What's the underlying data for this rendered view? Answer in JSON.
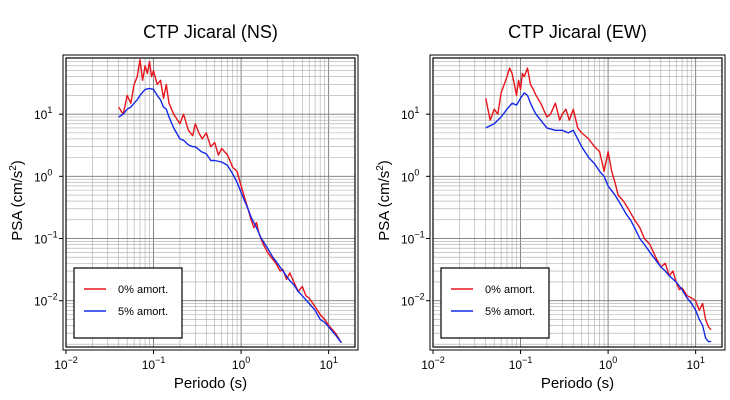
{
  "chart_data": [
    {
      "type": "line",
      "title": "CTP Jicaral (NS)",
      "xlabel": "Periodo (s)",
      "ylabel_main": "PSA (cm/s",
      "ylabel_sup": "2",
      "ylabel_tail": ")",
      "xscale": "log",
      "yscale": "log",
      "xlim": [
        0.01,
        20
      ],
      "ylim": [
        0.0018,
        80
      ],
      "grid": true,
      "legend_position": "bottom-left",
      "x_ticks": [
        {
          "base": "10",
          "exp": "−2"
        },
        {
          "base": "10",
          "exp": "−1"
        },
        {
          "base": "10",
          "exp": "0"
        },
        {
          "base": "10",
          "exp": "1"
        }
      ],
      "y_ticks": [
        {
          "base": "10",
          "exp": "−2"
        },
        {
          "base": "10",
          "exp": "−1"
        },
        {
          "base": "10",
          "exp": "0"
        },
        {
          "base": "10",
          "exp": "1"
        }
      ],
      "series": [
        {
          "name": "0% amort.",
          "color": "#e8141c",
          "points": [
            [
              0.04,
              13
            ],
            [
              0.045,
              10
            ],
            [
              0.05,
              20
            ],
            [
              0.055,
              15
            ],
            [
              0.06,
              30
            ],
            [
              0.065,
              40
            ],
            [
              0.07,
              75
            ],
            [
              0.075,
              35
            ],
            [
              0.08,
              60
            ],
            [
              0.085,
              45
            ],
            [
              0.09,
              70
            ],
            [
              0.095,
              40
            ],
            [
              0.1,
              50
            ],
            [
              0.11,
              30
            ],
            [
              0.12,
              35
            ],
            [
              0.13,
              18
            ],
            [
              0.14,
              30
            ],
            [
              0.15,
              15
            ],
            [
              0.17,
              10
            ],
            [
              0.2,
              7
            ],
            [
              0.22,
              10
            ],
            [
              0.25,
              5.5
            ],
            [
              0.28,
              4.5
            ],
            [
              0.3,
              7
            ],
            [
              0.33,
              5
            ],
            [
              0.36,
              4
            ],
            [
              0.4,
              5
            ],
            [
              0.45,
              3
            ],
            [
              0.5,
              3.5
            ],
            [
              0.55,
              2.2
            ],
            [
              0.6,
              2.8
            ],
            [
              0.7,
              2.2
            ],
            [
              0.8,
              1.4
            ],
            [
              0.9,
              1.2
            ],
            [
              1.0,
              0.7
            ],
            [
              1.1,
              0.45
            ],
            [
              1.2,
              0.3
            ],
            [
              1.3,
              0.2
            ],
            [
              1.4,
              0.15
            ],
            [
              1.5,
              0.18
            ],
            [
              1.6,
              0.12
            ],
            [
              1.8,
              0.08
            ],
            [
              2.0,
              0.06
            ],
            [
              2.2,
              0.05
            ],
            [
              2.5,
              0.04
            ],
            [
              2.8,
              0.03
            ],
            [
              3.0,
              0.032
            ],
            [
              3.3,
              0.022
            ],
            [
              3.6,
              0.028
            ],
            [
              4.0,
              0.02
            ],
            [
              4.5,
              0.014
            ],
            [
              5.0,
              0.017
            ],
            [
              5.5,
              0.012
            ],
            [
              6.0,
              0.011
            ],
            [
              7.0,
              0.008
            ],
            [
              8.0,
              0.006
            ],
            [
              9.0,
              0.005
            ],
            [
              10.0,
              0.004
            ],
            [
              12.0,
              0.003
            ],
            [
              14.0,
              0.0021
            ]
          ]
        },
        {
          "name": "5% amort.",
          "color": "#1428e8",
          "points": [
            [
              0.04,
              9
            ],
            [
              0.045,
              10
            ],
            [
              0.05,
              12
            ],
            [
              0.055,
              13
            ],
            [
              0.06,
              15
            ],
            [
              0.065,
              17
            ],
            [
              0.07,
              20
            ],
            [
              0.08,
              25
            ],
            [
              0.09,
              26
            ],
            [
              0.1,
              25
            ],
            [
              0.11,
              20
            ],
            [
              0.12,
              17
            ],
            [
              0.13,
              13
            ],
            [
              0.14,
              12
            ],
            [
              0.15,
              9
            ],
            [
              0.17,
              6
            ],
            [
              0.2,
              4
            ],
            [
              0.22,
              3.8
            ],
            [
              0.25,
              3.2
            ],
            [
              0.28,
              3
            ],
            [
              0.3,
              3
            ],
            [
              0.35,
              2.5
            ],
            [
              0.4,
              2.3
            ],
            [
              0.45,
              1.8
            ],
            [
              0.5,
              1.8
            ],
            [
              0.6,
              1.7
            ],
            [
              0.7,
              1.5
            ],
            [
              0.8,
              1.1
            ],
            [
              0.9,
              0.8
            ],
            [
              1.0,
              0.55
            ],
            [
              1.1,
              0.4
            ],
            [
              1.2,
              0.3
            ],
            [
              1.3,
              0.22
            ],
            [
              1.5,
              0.15
            ],
            [
              1.7,
              0.1
            ],
            [
              2.0,
              0.07
            ],
            [
              2.3,
              0.05
            ],
            [
              2.6,
              0.04
            ],
            [
              3.0,
              0.03
            ],
            [
              3.5,
              0.022
            ],
            [
              4.0,
              0.018
            ],
            [
              4.5,
              0.014
            ],
            [
              5.0,
              0.012
            ],
            [
              6.0,
              0.009
            ],
            [
              7.0,
              0.007
            ],
            [
              8.0,
              0.005
            ],
            [
              9.0,
              0.0045
            ],
            [
              10.0,
              0.0038
            ],
            [
              12.0,
              0.0028
            ],
            [
              14.0,
              0.0021
            ]
          ]
        }
      ]
    },
    {
      "type": "line",
      "title": "CTP Jicaral (EW)",
      "xlabel": "Periodo (s)",
      "ylabel_main": "PSA (cm/s",
      "ylabel_sup": "2",
      "ylabel_tail": ")",
      "xscale": "log",
      "yscale": "log",
      "xlim": [
        0.01,
        20
      ],
      "ylim": [
        0.0018,
        80
      ],
      "grid": true,
      "legend_position": "bottom-left",
      "x_ticks": [
        {
          "base": "10",
          "exp": "−2"
        },
        {
          "base": "10",
          "exp": "−1"
        },
        {
          "base": "10",
          "exp": "0"
        },
        {
          "base": "10",
          "exp": "1"
        }
      ],
      "y_ticks": [
        {
          "base": "10",
          "exp": "−2"
        },
        {
          "base": "10",
          "exp": "−1"
        },
        {
          "base": "10",
          "exp": "0"
        },
        {
          "base": "10",
          "exp": "1"
        }
      ],
      "series": [
        {
          "name": "0% amort.",
          "color": "#e8141c",
          "points": [
            [
              0.04,
              18
            ],
            [
              0.045,
              8
            ],
            [
              0.05,
              12
            ],
            [
              0.055,
              10
            ],
            [
              0.06,
              22
            ],
            [
              0.065,
              30
            ],
            [
              0.07,
              40
            ],
            [
              0.075,
              55
            ],
            [
              0.08,
              45
            ],
            [
              0.085,
              30
            ],
            [
              0.09,
              20
            ],
            [
              0.095,
              35
            ],
            [
              0.1,
              25
            ],
            [
              0.105,
              45
            ],
            [
              0.11,
              40
            ],
            [
              0.12,
              55
            ],
            [
              0.13,
              30
            ],
            [
              0.14,
              25
            ],
            [
              0.15,
              20
            ],
            [
              0.17,
              15
            ],
            [
              0.2,
              9
            ],
            [
              0.22,
              10
            ],
            [
              0.25,
              15
            ],
            [
              0.28,
              8
            ],
            [
              0.3,
              10
            ],
            [
              0.33,
              12
            ],
            [
              0.36,
              8
            ],
            [
              0.4,
              12
            ],
            [
              0.45,
              6
            ],
            [
              0.5,
              5
            ],
            [
              0.6,
              4
            ],
            [
              0.7,
              3
            ],
            [
              0.8,
              2.5
            ],
            [
              0.9,
              1.2
            ],
            [
              1.0,
              2.5
            ],
            [
              1.1,
              1.2
            ],
            [
              1.2,
              0.8
            ],
            [
              1.3,
              0.5
            ],
            [
              1.5,
              0.4
            ],
            [
              1.7,
              0.3
            ],
            [
              2.0,
              0.2
            ],
            [
              2.3,
              0.15
            ],
            [
              2.6,
              0.1
            ],
            [
              3.0,
              0.08
            ],
            [
              3.5,
              0.05
            ],
            [
              4.0,
              0.035
            ],
            [
              4.5,
              0.04
            ],
            [
              5.0,
              0.025
            ],
            [
              5.5,
              0.03
            ],
            [
              6.0,
              0.02
            ],
            [
              6.5,
              0.015
            ],
            [
              7.0,
              0.016
            ],
            [
              8.0,
              0.012
            ],
            [
              9.0,
              0.011
            ],
            [
              10.0,
              0.01
            ],
            [
              11.0,
              0.007
            ],
            [
              12.0,
              0.009
            ],
            [
              13.0,
              0.005
            ],
            [
              14.0,
              0.0038
            ],
            [
              15.0,
              0.0034
            ]
          ]
        },
        {
          "name": "5% amort.",
          "color": "#1428e8",
          "points": [
            [
              0.04,
              6
            ],
            [
              0.05,
              7
            ],
            [
              0.06,
              9
            ],
            [
              0.07,
              12
            ],
            [
              0.08,
              15
            ],
            [
              0.09,
              14
            ],
            [
              0.1,
              18
            ],
            [
              0.11,
              22
            ],
            [
              0.12,
              20
            ],
            [
              0.13,
              15
            ],
            [
              0.14,
              12
            ],
            [
              0.15,
              10
            ],
            [
              0.17,
              8
            ],
            [
              0.2,
              6
            ],
            [
              0.25,
              5.5
            ],
            [
              0.3,
              5.5
            ],
            [
              0.35,
              5
            ],
            [
              0.4,
              5.5
            ],
            [
              0.45,
              4
            ],
            [
              0.5,
              3
            ],
            [
              0.6,
              2
            ],
            [
              0.7,
              1.6
            ],
            [
              0.8,
              1.2
            ],
            [
              0.9,
              1.0
            ],
            [
              1.0,
              0.7
            ],
            [
              1.2,
              0.5
            ],
            [
              1.4,
              0.35
            ],
            [
              1.6,
              0.25
            ],
            [
              1.8,
              0.2
            ],
            [
              2.0,
              0.15
            ],
            [
              2.3,
              0.1
            ],
            [
              2.6,
              0.08
            ],
            [
              3.0,
              0.06
            ],
            [
              3.5,
              0.045
            ],
            [
              4.0,
              0.035
            ],
            [
              4.5,
              0.03
            ],
            [
              5.0,
              0.025
            ],
            [
              6.0,
              0.02
            ],
            [
              7.0,
              0.015
            ],
            [
              8.0,
              0.011
            ],
            [
              9.0,
              0.009
            ],
            [
              10.0,
              0.007
            ],
            [
              11.0,
              0.005
            ],
            [
              12.0,
              0.004
            ],
            [
              13.0,
              0.0025
            ],
            [
              14.0,
              0.0022
            ],
            [
              15.0,
              0.0022
            ]
          ]
        }
      ]
    }
  ]
}
